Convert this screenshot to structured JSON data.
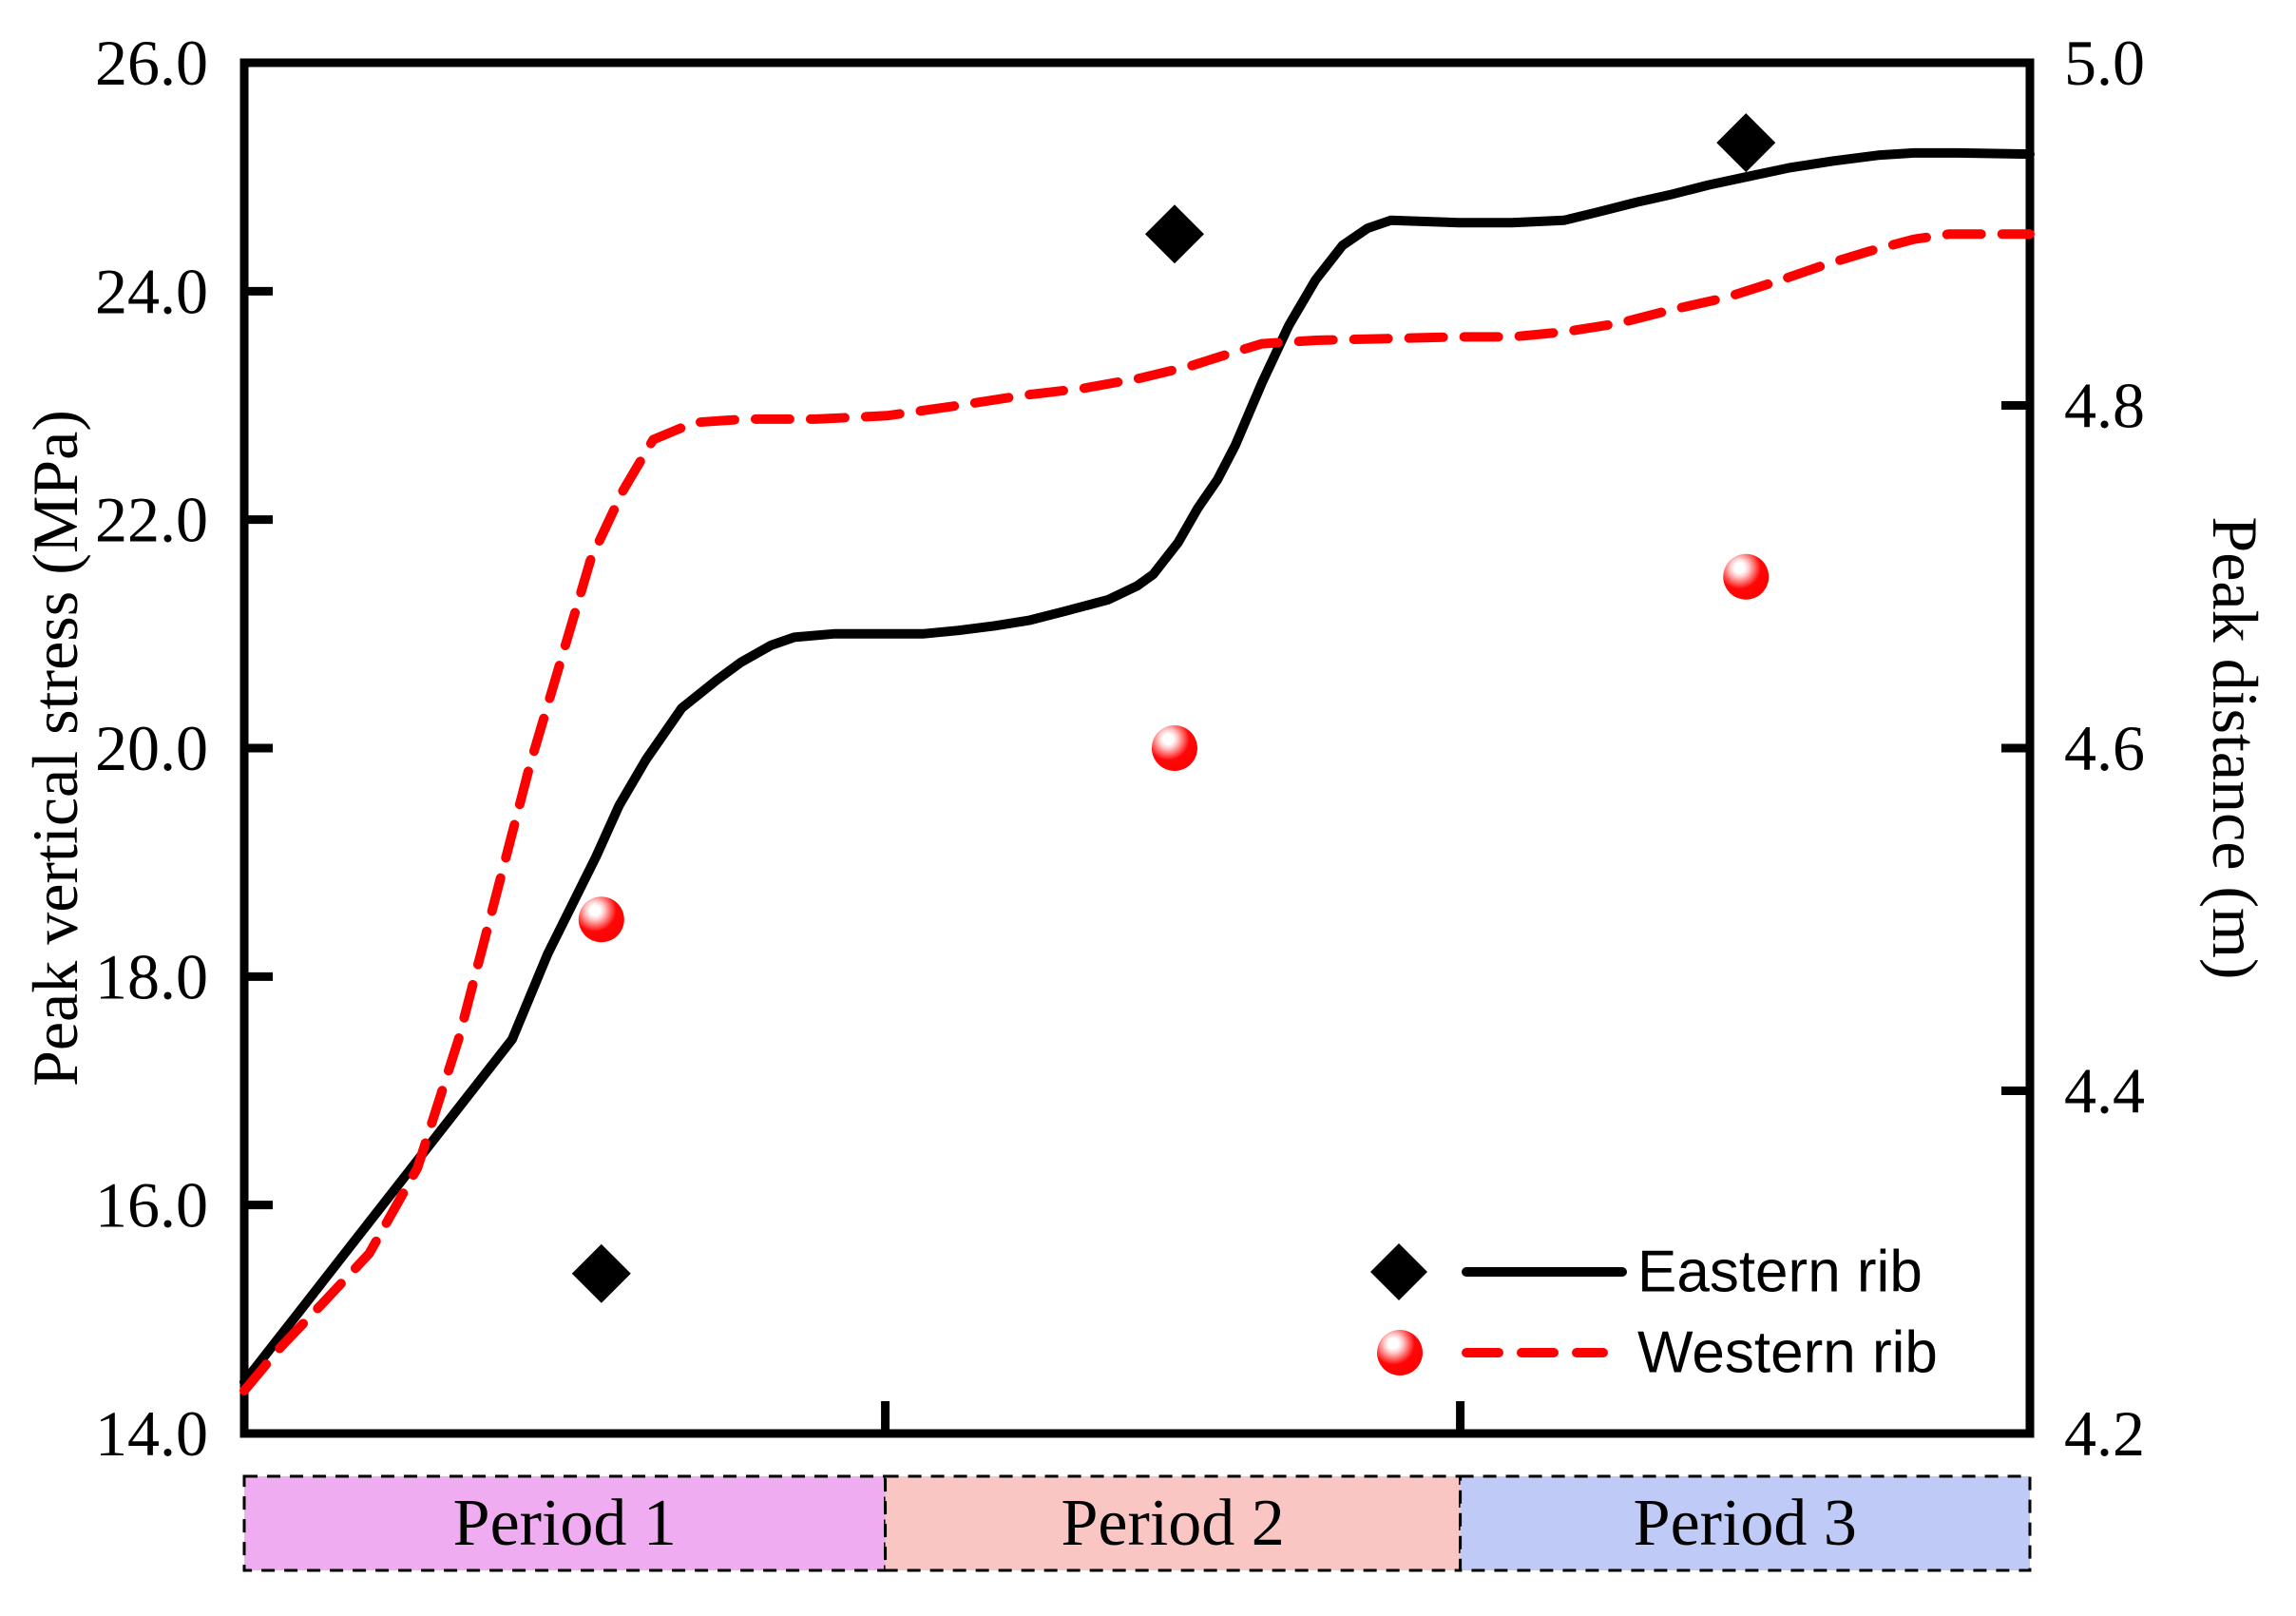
{
  "chart_data": {
    "type": "line",
    "title": "",
    "left_axis": {
      "label": "Peak vertical stress (MPa)",
      "min": 14.0,
      "max": 26.0,
      "ticks": [
        "26.0",
        "24.0",
        "22.0",
        "20.0",
        "18.0",
        "16.0",
        "14.0"
      ]
    },
    "right_axis": {
      "label": "Peak distance (m)",
      "min": 4.2,
      "max": 5.0,
      "ticks": [
        "5.0",
        "4.8",
        "4.6",
        "4.4",
        "4.2"
      ]
    },
    "x_axis": {
      "min": 0,
      "max": 100,
      "boundary_ticks": [
        35.9,
        68.1
      ]
    },
    "series": [
      {
        "name": "Eastern rib",
        "axis": "left",
        "color": "#000000",
        "style": "solid",
        "marker": "diamond",
        "line": [
          [
            0,
            14.45
          ],
          [
            3,
            15.05
          ],
          [
            6,
            15.65
          ],
          [
            9,
            16.25
          ],
          [
            12,
            16.85
          ],
          [
            15,
            17.45
          ],
          [
            17,
            18.2
          ],
          [
            19.7,
            19.05
          ],
          [
            21,
            19.5
          ],
          [
            22.5,
            19.9
          ],
          [
            24.5,
            20.35
          ],
          [
            26.5,
            20.6
          ],
          [
            27.8,
            20.75
          ],
          [
            29.5,
            20.9
          ],
          [
            30.8,
            20.97
          ],
          [
            33,
            21.0
          ],
          [
            36,
            21.0
          ],
          [
            38,
            21.0
          ],
          [
            40,
            21.03
          ],
          [
            42,
            21.07
          ],
          [
            44,
            21.12
          ],
          [
            46,
            21.2
          ],
          [
            48.4,
            21.3
          ],
          [
            50,
            21.42
          ],
          [
            50.9,
            21.52
          ],
          [
            52.3,
            21.8
          ],
          [
            53.4,
            22.1
          ],
          [
            54.5,
            22.35
          ],
          [
            55.5,
            22.65
          ],
          [
            57,
            23.2
          ],
          [
            58.5,
            23.7
          ],
          [
            60,
            24.1
          ],
          [
            61.5,
            24.4
          ],
          [
            62.9,
            24.55
          ],
          [
            64.2,
            24.62
          ],
          [
            68,
            24.6
          ],
          [
            71,
            24.6
          ],
          [
            73.9,
            24.62
          ],
          [
            76,
            24.7
          ],
          [
            78,
            24.78
          ],
          [
            80,
            24.85
          ],
          [
            82,
            24.93
          ],
          [
            84.1,
            25.0
          ],
          [
            86.5,
            25.08
          ],
          [
            89,
            25.14
          ],
          [
            91.5,
            25.19
          ],
          [
            93.5,
            25.21
          ],
          [
            96,
            25.21
          ],
          [
            100,
            25.2
          ]
        ],
        "markers": [
          [
            20,
            15.4
          ],
          [
            52.1,
            24.5
          ],
          [
            84.1,
            25.3
          ]
        ]
      },
      {
        "name": "Western rib",
        "axis": "right",
        "color": "#FF0000",
        "style": "dashed",
        "marker": "sphere",
        "line": [
          [
            0,
            4.225
          ],
          [
            2,
            4.25
          ],
          [
            4.3,
            4.275
          ],
          [
            7,
            4.305
          ],
          [
            9.7,
            4.355
          ],
          [
            12,
            4.43
          ],
          [
            14,
            4.51
          ],
          [
            16,
            4.59
          ],
          [
            17.7,
            4.65
          ],
          [
            19.4,
            4.71
          ],
          [
            21.2,
            4.75
          ],
          [
            22.9,
            4.78
          ],
          [
            25.2,
            4.79
          ],
          [
            28,
            4.792
          ],
          [
            32,
            4.792
          ],
          [
            36,
            4.794
          ],
          [
            40,
            4.8
          ],
          [
            43.7,
            4.806
          ],
          [
            47,
            4.81
          ],
          [
            50.2,
            4.816
          ],
          [
            53,
            4.823
          ],
          [
            55.4,
            4.831
          ],
          [
            57,
            4.836
          ],
          [
            60,
            4.838
          ],
          [
            64,
            4.839
          ],
          [
            68,
            4.84
          ],
          [
            71,
            4.84
          ],
          [
            74,
            4.843
          ],
          [
            77,
            4.848
          ],
          [
            80,
            4.856
          ],
          [
            83,
            4.863
          ],
          [
            86,
            4.873
          ],
          [
            88.5,
            4.882
          ],
          [
            91,
            4.89
          ],
          [
            93.5,
            4.897
          ],
          [
            95.5,
            4.9
          ],
          [
            100,
            4.9
          ]
        ],
        "markers": [
          [
            20,
            4.5
          ],
          [
            52.1,
            4.6
          ],
          [
            84.1,
            4.7
          ]
        ]
      }
    ],
    "periods": [
      {
        "label": "Period 1",
        "x_start": 0,
        "x_end": 35.9,
        "fill": "#F0ACF1"
      },
      {
        "label": "Period 2",
        "x_start": 35.9,
        "x_end": 68.1,
        "fill": "#FAC6C4"
      },
      {
        "label": "Period 3",
        "x_start": 68.1,
        "x_end": 100,
        "fill": "#BFCAF7"
      }
    ],
    "legend": {
      "position": "bottom-right-inside",
      "entries": [
        {
          "label": "Eastern rib",
          "series": 0
        },
        {
          "label": "Western rib",
          "series": 1
        }
      ]
    },
    "grid": "off"
  },
  "colors": {
    "frame": "#000000",
    "eastern": "#000000",
    "western": "#FF0000",
    "background": "#FFFFFF"
  }
}
